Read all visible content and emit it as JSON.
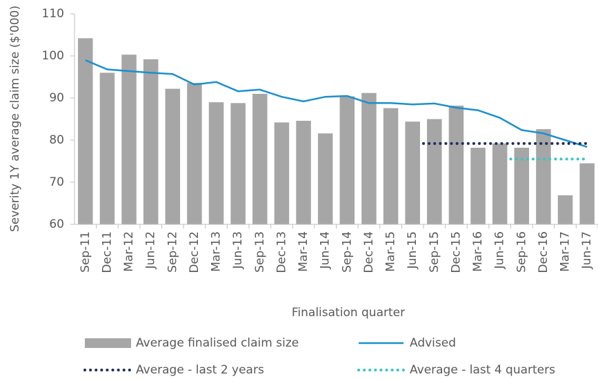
{
  "chart_data": {
    "type": "bar",
    "y_label": "Severity 1Y average claim size ($'000)",
    "x_label": "Finalisation quarter",
    "categories": [
      "Sep-11",
      "Dec-11",
      "Mar-12",
      "Jun-12",
      "Sep-12",
      "Dec-12",
      "Mar-13",
      "Jun-13",
      "Sep-13",
      "Dec-13",
      "Mar-14",
      "Jun-14",
      "Sep-14",
      "Dec-14",
      "Mar-15",
      "Jun-15",
      "Sep-15",
      "Dec-15",
      "Mar-16",
      "Jun-16",
      "Sep-16",
      "Dec-16",
      "Mar-17",
      "Jun-17"
    ],
    "ylim": [
      60,
      110
    ],
    "yticks": [
      60,
      70,
      80,
      90,
      100,
      110
    ],
    "series": [
      {
        "name": "Average finalised claim size",
        "type": "bar",
        "color": "#a6a6a6",
        "values": [
          104.2,
          96,
          100.3,
          99.2,
          92.2,
          93.6,
          89,
          88.8,
          91,
          84.2,
          84.6,
          81.6,
          90.4,
          91.2,
          87.6,
          84.4,
          85,
          88.2,
          78.2,
          79.2,
          78.2,
          82.6,
          66.9,
          74.5
        ]
      },
      {
        "name": "Advised",
        "type": "line",
        "color": "#1b8fcf",
        "values": [
          99,
          96.8,
          96.4,
          96,
          95.7,
          93.2,
          93.8,
          91.6,
          92,
          90.3,
          89.2,
          90.3,
          90.5,
          88.8,
          88.8,
          88.5,
          88.7,
          87.7,
          87.1,
          85.3,
          82.4,
          81.6,
          80,
          78.4
        ]
      },
      {
        "name": "Average - last 2 years",
        "type": "dotted",
        "color": "#1f2d5c",
        "values": [
          null,
          null,
          null,
          null,
          null,
          null,
          null,
          null,
          null,
          null,
          null,
          null,
          null,
          null,
          null,
          null,
          79.2,
          79.2,
          79.2,
          79.2,
          79.2,
          79.2,
          79.2,
          79.2
        ]
      },
      {
        "name": "Average - last 4 quarters",
        "type": "dotted",
        "color": "#3cc4c4",
        "values": [
          null,
          null,
          null,
          null,
          null,
          null,
          null,
          null,
          null,
          null,
          null,
          null,
          null,
          null,
          null,
          null,
          null,
          null,
          null,
          null,
          75.5,
          75.5,
          75.5,
          75.5
        ]
      }
    ]
  }
}
